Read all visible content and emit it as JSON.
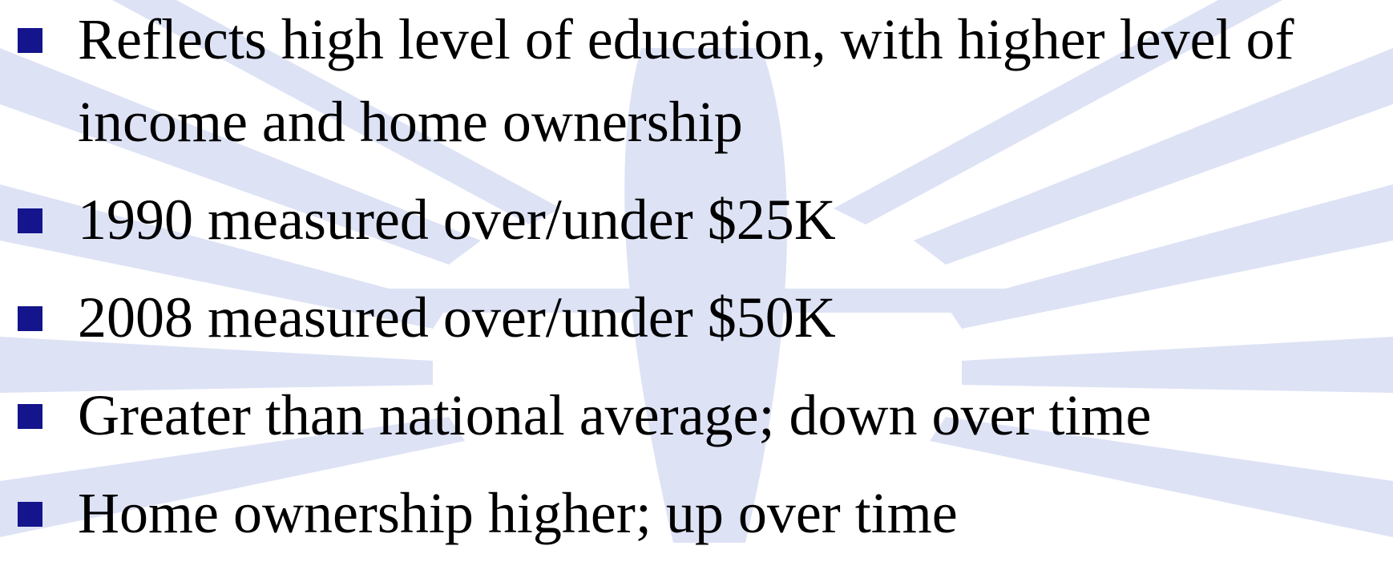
{
  "bullets": [
    "Reflects high level of education, with higher level of income and home ownership",
    "1990 measured over/under $25K",
    "2008 measured over/under $50K",
    "Greater than national average; down over time",
    "Home ownership higher; up over time"
  ]
}
